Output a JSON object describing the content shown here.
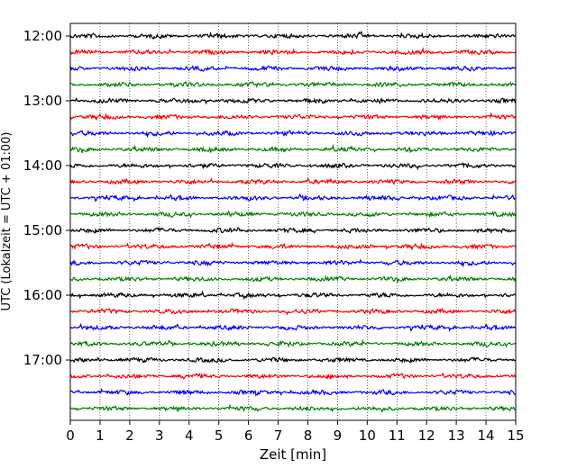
{
  "chart_data": {
    "type": "line",
    "title": "",
    "xlabel": "Zeit  [min]",
    "ylabel": "UTC (Lokalzeit = UTC + 01:00)",
    "xlim": [
      0,
      15
    ],
    "x_ticks": [
      "0",
      "1",
      "2",
      "3",
      "4",
      "5",
      "6",
      "7",
      "8",
      "9",
      "10",
      "11",
      "12",
      "13",
      "14",
      "15"
    ],
    "y_tick_labels": [
      "12:00",
      "13:00",
      "14:00",
      "15:00",
      "16:00",
      "17:00"
    ],
    "grid": {
      "x": true,
      "y": false,
      "style": "dotted"
    },
    "trace_colors": [
      "#000000",
      "#ff0000",
      "#0000ff",
      "#008000"
    ],
    "traces": [
      "12:00",
      "12:15",
      "12:30",
      "12:45",
      "13:00",
      "13:15",
      "13:30",
      "13:45",
      "14:00",
      "14:15",
      "14:30",
      "14:45",
      "15:00",
      "15:15",
      "15:30",
      "15:45",
      "16:00",
      "16:15",
      "16:30",
      "16:45",
      "17:00",
      "17:15",
      "17:30",
      "17:45"
    ]
  }
}
